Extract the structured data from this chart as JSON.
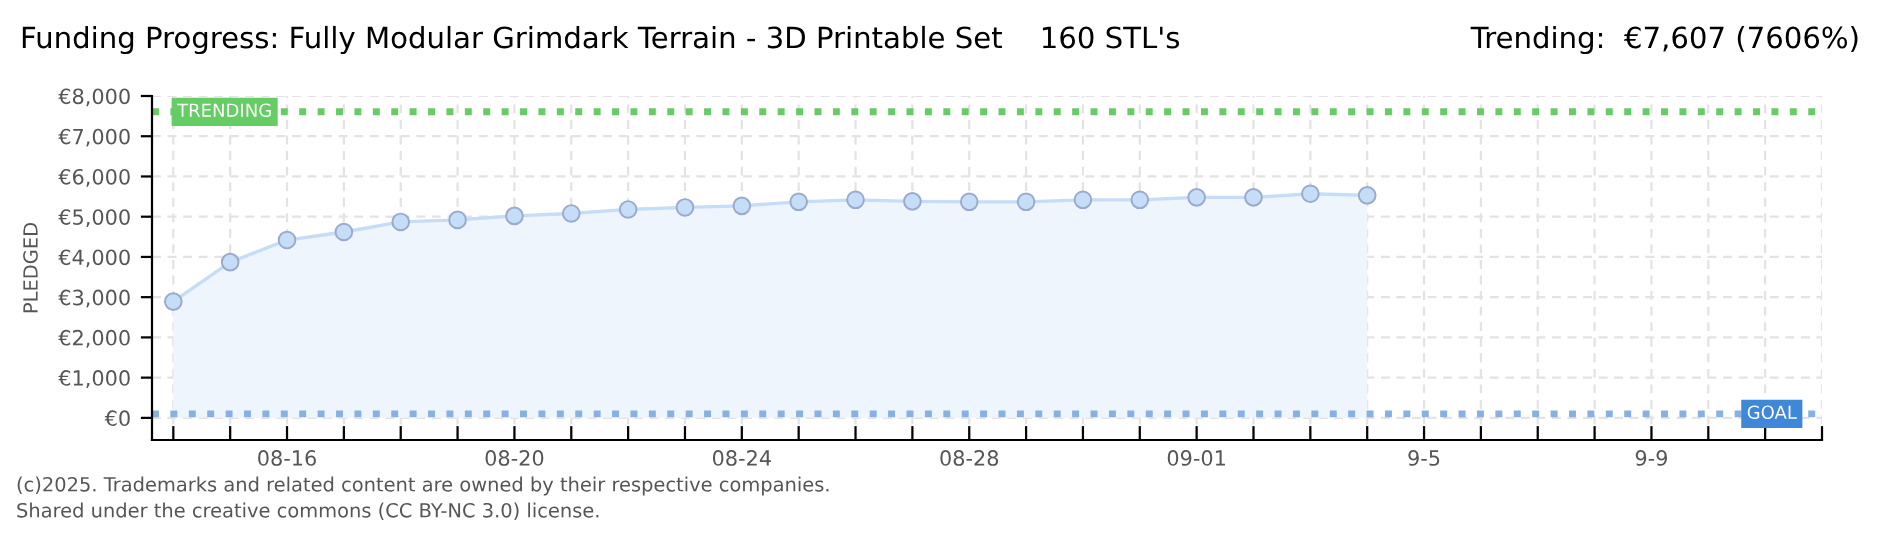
{
  "chart_data": {
    "type": "area",
    "title": "Funding Progress: Fully Modular Grimdark Terrain - 3D Printable Set    160 STL's",
    "subtitle": "Trending:  €7,607 (7606%)",
    "ylabel": "PLEDGED",
    "x": [
      "2025-08-14",
      "2025-08-15",
      "2025-08-16",
      "2025-08-17",
      "2025-08-18",
      "2025-08-19",
      "2025-08-20",
      "2025-08-21",
      "2025-08-22",
      "2025-08-23",
      "2025-08-24",
      "2025-08-25",
      "2025-08-26",
      "2025-08-27",
      "2025-08-28",
      "2025-08-29",
      "2025-08-30",
      "2025-08-31",
      "2025-09-01",
      "2025-09-02",
      "2025-09-03",
      "2025-09-04"
    ],
    "series": [
      {
        "color": "#c5ddf6",
        "values": [
          2890,
          3870,
          4420,
          4620,
          4870,
          4920,
          5020,
          5080,
          5180,
          5230,
          5270,
          5370,
          5420,
          5380,
          5370,
          5370,
          5420,
          5420,
          5480,
          5480,
          5570,
          5530
        ]
      }
    ],
    "xlim": [
      "2025-08-13T15:00",
      "2025-09-12"
    ],
    "ylim": [
      -550,
      8000
    ],
    "xticks": [
      {
        "value": "2025-08-14",
        "label": null
      },
      {
        "value": "2025-08-15",
        "label": null
      },
      {
        "value": "2025-08-16",
        "label": "08-16"
      },
      {
        "value": "2025-08-17",
        "label": null
      },
      {
        "value": "2025-08-18",
        "label": null
      },
      {
        "value": "2025-08-19",
        "label": null
      },
      {
        "value": "2025-08-20",
        "label": "08-20"
      },
      {
        "value": "2025-08-21",
        "label": null
      },
      {
        "value": "2025-08-22",
        "label": null
      },
      {
        "value": "2025-08-23",
        "label": null
      },
      {
        "value": "2025-08-24",
        "label": "08-24"
      },
      {
        "value": "2025-08-25",
        "label": null
      },
      {
        "value": "2025-08-26",
        "label": null
      },
      {
        "value": "2025-08-27",
        "label": null
      },
      {
        "value": "2025-08-28",
        "label": "08-28"
      },
      {
        "value": "2025-08-29",
        "label": null
      },
      {
        "value": "2025-08-30",
        "label": null
      },
      {
        "value": "2025-08-31",
        "label": null
      },
      {
        "value": "2025-09-01",
        "label": "09-01"
      },
      {
        "value": "2025-09-02",
        "label": null
      },
      {
        "value": "2025-09-03",
        "label": null
      },
      {
        "value": "2025-09-04",
        "label": null
      },
      {
        "value": "2025-09-05",
        "label": "9-5"
      },
      {
        "value": "2025-09-06",
        "label": null
      },
      {
        "value": "2025-09-07",
        "label": null
      },
      {
        "value": "2025-09-08",
        "label": null
      },
      {
        "value": "2025-09-09",
        "label": "9-9"
      },
      {
        "value": "2025-09-10",
        "label": null
      },
      {
        "value": "2025-09-11",
        "label": null
      },
      {
        "value": "2025-09-12",
        "label": null
      }
    ],
    "yticks": [
      {
        "value": 0,
        "label": "€0"
      },
      {
        "value": 1000,
        "label": "€1,000"
      },
      {
        "value": 2000,
        "label": "€2,000"
      },
      {
        "value": 3000,
        "label": "€3,000"
      },
      {
        "value": 4000,
        "label": "€4,000"
      },
      {
        "value": 5000,
        "label": "€5,000"
      },
      {
        "value": 6000,
        "label": "€6,000"
      },
      {
        "value": 7000,
        "label": "€7,000"
      },
      {
        "value": 8000,
        "label": "€8,000"
      }
    ],
    "ref_lines": [
      {
        "axis": "y",
        "value": 7607,
        "label": "TRENDING",
        "color": "#66cc66",
        "line_style": "dotted"
      },
      {
        "axis": "y",
        "value": 100,
        "label": "GOAL",
        "color": "#88b0e0",
        "line_style": "dotted"
      }
    ],
    "grid": true,
    "marker": "circle",
    "annotations": [
      "(c)2025. Trademarks and related content are owned by their respective companies.",
      "Shared under the creative commons (CC BY-NC 3.0) license."
    ]
  }
}
